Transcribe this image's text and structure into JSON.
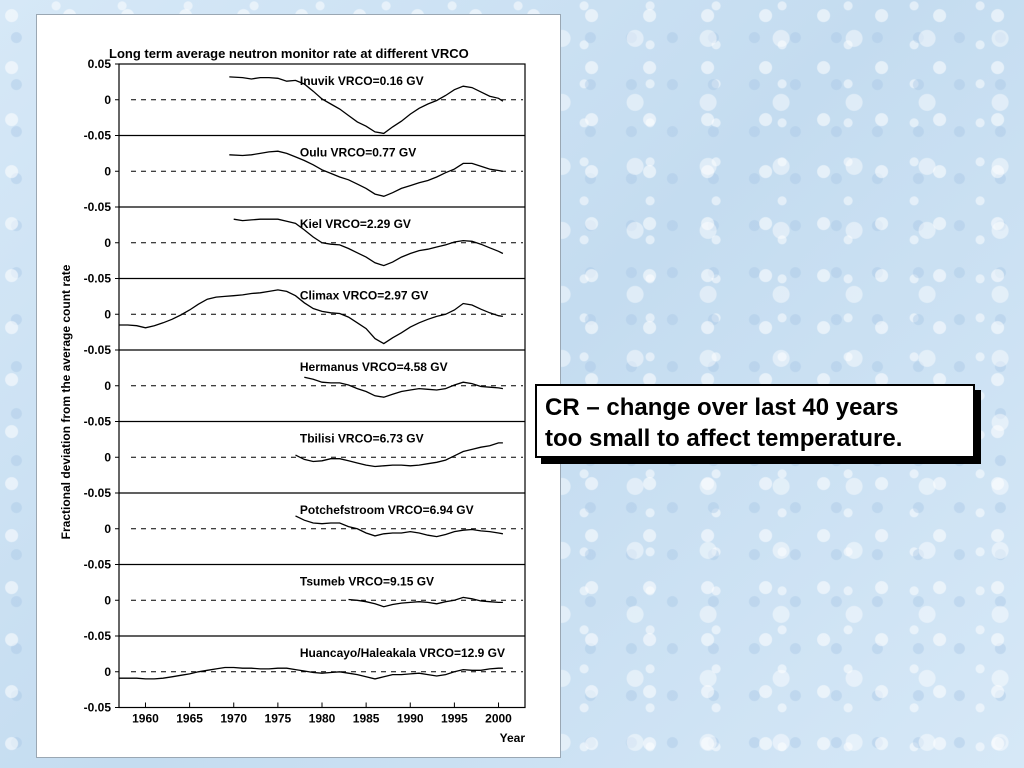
{
  "callout": {
    "line1": "CR – change over last 40 years",
    "line2": "too small to affect temperature."
  },
  "chart_data": {
    "type": "line",
    "title": "Long term average neutron monitor rate at different VRCO",
    "xlabel": "Year",
    "ylabel": "Fractional deviation from the average count rate",
    "xlim": [
      1957,
      2003
    ],
    "ylim": [
      -0.05,
      0.05
    ],
    "x_ticks": [
      "1960",
      "1965",
      "1970",
      "1975",
      "1980",
      "1985",
      "1990",
      "1995",
      "2000"
    ],
    "y_ticks": [
      "0.05",
      "0",
      "-0.05"
    ],
    "reference_line": 0,
    "line_color": "#000000",
    "panels": [
      {
        "name": "Inuvik VRCO=0.16 GV",
        "points": [
          [
            1969.5,
            0.032
          ],
          [
            1971,
            0.031
          ],
          [
            1972,
            0.029
          ],
          [
            1973,
            0.031
          ],
          [
            1974,
            0.031
          ],
          [
            1975,
            0.03
          ],
          [
            1976,
            0.026
          ],
          [
            1977,
            0.027
          ],
          [
            1978,
            0.022
          ],
          [
            1979,
            0.012
          ],
          [
            1980,
            0.001
          ],
          [
            1981,
            -0.006
          ],
          [
            1982,
            -0.013
          ],
          [
            1983,
            -0.022
          ],
          [
            1984,
            -0.031
          ],
          [
            1985,
            -0.037
          ],
          [
            1986,
            -0.045
          ],
          [
            1987,
            -0.047
          ],
          [
            1988,
            -0.038
          ],
          [
            1989,
            -0.03
          ],
          [
            1990,
            -0.02
          ],
          [
            1991,
            -0.012
          ],
          [
            1992,
            -0.006
          ],
          [
            1993,
            -0.001
          ],
          [
            1994,
            0.006
          ],
          [
            1995,
            0.014
          ],
          [
            1996,
            0.019
          ],
          [
            1997,
            0.017
          ],
          [
            1998,
            0.011
          ],
          [
            1999,
            0.005
          ],
          [
            2000,
            0.002
          ],
          [
            2000.5,
            -0.002
          ]
        ]
      },
      {
        "name": "Oulu VRCO=0.77 GV",
        "points": [
          [
            1969.5,
            0.023
          ],
          [
            1971,
            0.022
          ],
          [
            1972,
            0.023
          ],
          [
            1973,
            0.025
          ],
          [
            1974,
            0.027
          ],
          [
            1975,
            0.028
          ],
          [
            1976,
            0.025
          ],
          [
            1977,
            0.02
          ],
          [
            1978,
            0.015
          ],
          [
            1979,
            0.009
          ],
          [
            1980,
            0.002
          ],
          [
            1981,
            -0.003
          ],
          [
            1982,
            -0.008
          ],
          [
            1983,
            -0.012
          ],
          [
            1984,
            -0.018
          ],
          [
            1985,
            -0.024
          ],
          [
            1986,
            -0.032
          ],
          [
            1987,
            -0.035
          ],
          [
            1988,
            -0.03
          ],
          [
            1989,
            -0.024
          ],
          [
            1990,
            -0.02
          ],
          [
            1991,
            -0.016
          ],
          [
            1992,
            -0.013
          ],
          [
            1993,
            -0.008
          ],
          [
            1994,
            -0.002
          ],
          [
            1995,
            0.003
          ],
          [
            1996,
            0.011
          ],
          [
            1997,
            0.011
          ],
          [
            1998,
            0.007
          ],
          [
            1999,
            0.003
          ],
          [
            2000,
            0.001
          ],
          [
            2000.5,
            0
          ]
        ]
      },
      {
        "name": "Kiel VRCO=2.29 GV",
        "points": [
          [
            1970,
            0.033
          ],
          [
            1971,
            0.031
          ],
          [
            1972,
            0.032
          ],
          [
            1973,
            0.033
          ],
          [
            1974,
            0.033
          ],
          [
            1975,
            0.033
          ],
          [
            1976,
            0.03
          ],
          [
            1977,
            0.027
          ],
          [
            1978,
            0.018
          ],
          [
            1979,
            0.008
          ],
          [
            1980,
            0
          ],
          [
            1981,
            -0.002
          ],
          [
            1982,
            -0.003
          ],
          [
            1983,
            -0.008
          ],
          [
            1984,
            -0.014
          ],
          [
            1985,
            -0.02
          ],
          [
            1986,
            -0.028
          ],
          [
            1987,
            -0.032
          ],
          [
            1988,
            -0.027
          ],
          [
            1989,
            -0.02
          ],
          [
            1990,
            -0.015
          ],
          [
            1991,
            -0.011
          ],
          [
            1992,
            -0.009
          ],
          [
            1993,
            -0.006
          ],
          [
            1994,
            -0.003
          ],
          [
            1995,
            0.001
          ],
          [
            1996,
            0.003
          ],
          [
            1997,
            0.002
          ],
          [
            1998,
            -0.002
          ],
          [
            1999,
            -0.007
          ],
          [
            2000,
            -0.012
          ],
          [
            2000.5,
            -0.015
          ]
        ]
      },
      {
        "name": "Climax VRCO=2.97 GV",
        "points": [
          [
            1957,
            -0.015
          ],
          [
            1958,
            -0.015
          ],
          [
            1959,
            -0.016
          ],
          [
            1960,
            -0.019
          ],
          [
            1961,
            -0.016
          ],
          [
            1962,
            -0.012
          ],
          [
            1963,
            -0.007
          ],
          [
            1964,
            -0.001
          ],
          [
            1965,
            0.006
          ],
          [
            1966,
            0.014
          ],
          [
            1967,
            0.021
          ],
          [
            1968,
            0.024
          ],
          [
            1969,
            0.025
          ],
          [
            1970,
            0.026
          ],
          [
            1971,
            0.027
          ],
          [
            1972,
            0.029
          ],
          [
            1973,
            0.03
          ],
          [
            1974,
            0.032
          ],
          [
            1975,
            0.034
          ],
          [
            1976,
            0.032
          ],
          [
            1977,
            0.026
          ],
          [
            1978,
            0.016
          ],
          [
            1979,
            0.008
          ],
          [
            1980,
            0.004
          ],
          [
            1981,
            0.002
          ],
          [
            1982,
            0.001
          ],
          [
            1983,
            -0.004
          ],
          [
            1984,
            -0.012
          ],
          [
            1985,
            -0.02
          ],
          [
            1986,
            -0.034
          ],
          [
            1987,
            -0.041
          ],
          [
            1988,
            -0.033
          ],
          [
            1989,
            -0.026
          ],
          [
            1990,
            -0.018
          ],
          [
            1991,
            -0.012
          ],
          [
            1992,
            -0.007
          ],
          [
            1993,
            -0.003
          ],
          [
            1994,
            0
          ],
          [
            1995,
            0.006
          ],
          [
            1996,
            0.015
          ],
          [
            1997,
            0.013
          ],
          [
            1998,
            0.007
          ],
          [
            1999,
            0.002
          ],
          [
            2000,
            -0.002
          ],
          [
            2000.5,
            -0.003
          ]
        ]
      },
      {
        "name": "Hermanus VRCO=4.58 GV",
        "points": [
          [
            1978,
            0.012
          ],
          [
            1979,
            0.009
          ],
          [
            1980,
            0.005
          ],
          [
            1981,
            0.004
          ],
          [
            1982,
            0.004
          ],
          [
            1983,
            0.001
          ],
          [
            1984,
            -0.004
          ],
          [
            1985,
            -0.008
          ],
          [
            1986,
            -0.014
          ],
          [
            1987,
            -0.016
          ],
          [
            1988,
            -0.012
          ],
          [
            1989,
            -0.008
          ],
          [
            1990,
            -0.006
          ],
          [
            1991,
            -0.004
          ],
          [
            1992,
            -0.005
          ],
          [
            1993,
            -0.006
          ],
          [
            1994,
            -0.004
          ],
          [
            1995,
            0.001
          ],
          [
            1996,
            0.005
          ],
          [
            1997,
            0.003
          ],
          [
            1998,
            -0.001
          ],
          [
            1999,
            -0.002
          ],
          [
            2000,
            -0.003
          ],
          [
            2000.5,
            -0.004
          ]
        ]
      },
      {
        "name": "Tbilisi VRCO=6.73 GV",
        "points": [
          [
            1977,
            0.003
          ],
          [
            1978,
            -0.003
          ],
          [
            1979,
            -0.006
          ],
          [
            1980,
            -0.005
          ],
          [
            1981,
            -0.002
          ],
          [
            1982,
            -0.002
          ],
          [
            1983,
            -0.005
          ],
          [
            1984,
            -0.008
          ],
          [
            1985,
            -0.011
          ],
          [
            1986,
            -0.013
          ],
          [
            1987,
            -0.012
          ],
          [
            1988,
            -0.011
          ],
          [
            1989,
            -0.011
          ],
          [
            1990,
            -0.012
          ],
          [
            1991,
            -0.011
          ],
          [
            1992,
            -0.009
          ],
          [
            1993,
            -0.007
          ],
          [
            1994,
            -0.004
          ],
          [
            1995,
            0.002
          ],
          [
            1996,
            0.008
          ],
          [
            1997,
            0.011
          ],
          [
            1998,
            0.014
          ],
          [
            1999,
            0.016
          ],
          [
            2000,
            0.02
          ],
          [
            2000.5,
            0.02
          ]
        ]
      },
      {
        "name": "Potchefstroom VRCO=6.94 GV",
        "points": [
          [
            1977,
            0.018
          ],
          [
            1978,
            0.012
          ],
          [
            1979,
            0.008
          ],
          [
            1980,
            0.007
          ],
          [
            1981,
            0.008
          ],
          [
            1982,
            0.008
          ],
          [
            1983,
            0.003
          ],
          [
            1984,
            0
          ],
          [
            1985,
            -0.006
          ],
          [
            1986,
            -0.01
          ],
          [
            1987,
            -0.007
          ],
          [
            1988,
            -0.006
          ],
          [
            1989,
            -0.006
          ],
          [
            1990,
            -0.004
          ],
          [
            1991,
            -0.006
          ],
          [
            1992,
            -0.009
          ],
          [
            1993,
            -0.011
          ],
          [
            1994,
            -0.008
          ],
          [
            1995,
            -0.004
          ],
          [
            1996,
            -0.002
          ],
          [
            1997,
            -0.001
          ],
          [
            1998,
            -0.003
          ],
          [
            1999,
            -0.004
          ],
          [
            2000,
            -0.006
          ],
          [
            2000.5,
            -0.007
          ]
        ]
      },
      {
        "name": "Tsumeb VRCO=9.15 GV",
        "points": [
          [
            1983,
            0.001
          ],
          [
            1984,
            0
          ],
          [
            1985,
            -0.002
          ],
          [
            1986,
            -0.005
          ],
          [
            1987,
            -0.009
          ],
          [
            1988,
            -0.006
          ],
          [
            1989,
            -0.004
          ],
          [
            1990,
            -0.003
          ],
          [
            1991,
            -0.002
          ],
          [
            1992,
            -0.003
          ],
          [
            1993,
            -0.005
          ],
          [
            1994,
            -0.002
          ],
          [
            1995,
            0
          ],
          [
            1996,
            0.004
          ],
          [
            1997,
            0.002
          ],
          [
            1998,
            -0.001
          ],
          [
            1999,
            -0.002
          ],
          [
            2000,
            -0.003
          ],
          [
            2000.5,
            -0.003
          ]
        ]
      },
      {
        "name": "Huancayo/Haleakala VRCO=12.9 GV",
        "points": [
          [
            1957,
            -0.009
          ],
          [
            1958,
            -0.009
          ],
          [
            1959,
            -0.009
          ],
          [
            1960,
            -0.01
          ],
          [
            1961,
            -0.01
          ],
          [
            1962,
            -0.009
          ],
          [
            1963,
            -0.007
          ],
          [
            1964,
            -0.005
          ],
          [
            1965,
            -0.003
          ],
          [
            1966,
            0
          ],
          [
            1967,
            0.002
          ],
          [
            1968,
            0.004
          ],
          [
            1969,
            0.006
          ],
          [
            1970,
            0.006
          ],
          [
            1971,
            0.005
          ],
          [
            1972,
            0.005
          ],
          [
            1973,
            0.004
          ],
          [
            1974,
            0.004
          ],
          [
            1975,
            0.005
          ],
          [
            1976,
            0.005
          ],
          [
            1977,
            0.003
          ],
          [
            1978,
            0.001
          ],
          [
            1979,
            -0.001
          ],
          [
            1980,
            -0.002
          ],
          [
            1981,
            -0.001
          ],
          [
            1982,
            0
          ],
          [
            1983,
            -0.002
          ],
          [
            1984,
            -0.004
          ],
          [
            1985,
            -0.007
          ],
          [
            1986,
            -0.01
          ],
          [
            1987,
            -0.007
          ],
          [
            1988,
            -0.004
          ],
          [
            1989,
            -0.004
          ],
          [
            1990,
            -0.003
          ],
          [
            1991,
            -0.002
          ],
          [
            1992,
            -0.004
          ],
          [
            1993,
            -0.006
          ],
          [
            1994,
            -0.004
          ],
          [
            1995,
            0
          ],
          [
            1996,
            0.003
          ],
          [
            1997,
            0.002
          ],
          [
            1998,
            0.002
          ],
          [
            1999,
            0.004
          ],
          [
            2000,
            0.005
          ],
          [
            2000.5,
            0.005
          ]
        ]
      }
    ]
  }
}
